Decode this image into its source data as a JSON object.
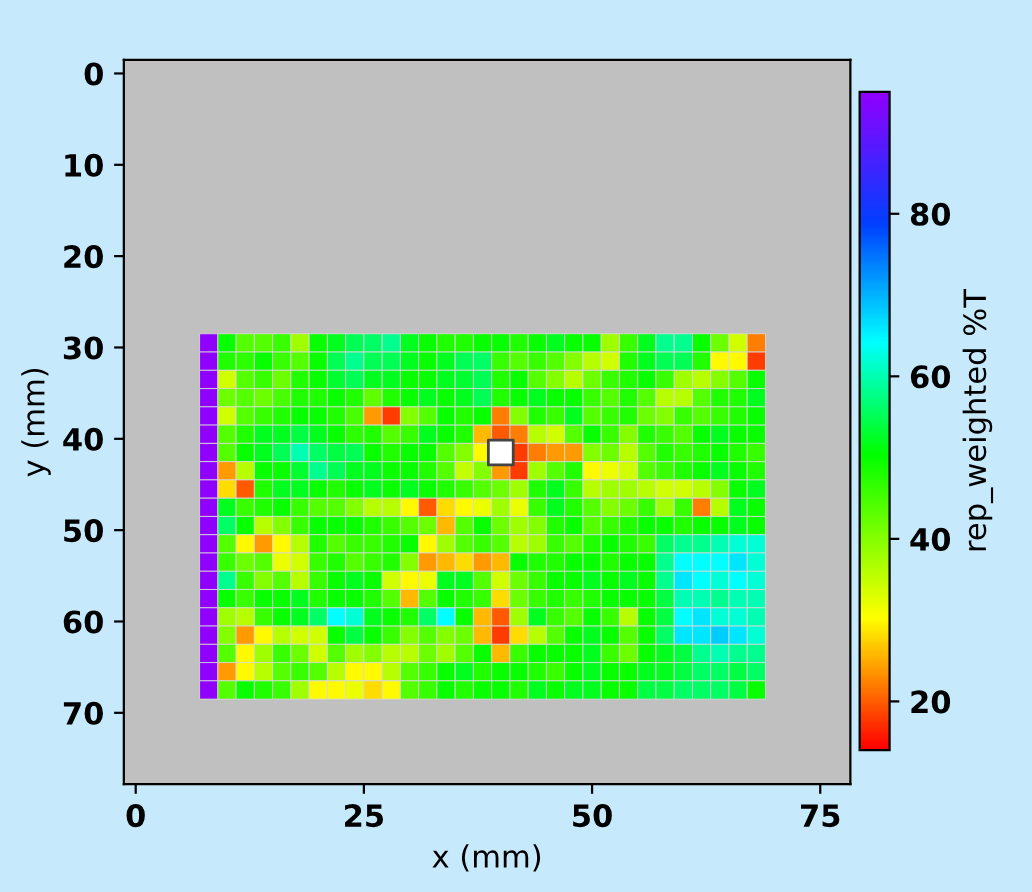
{
  "chart_data": {
    "type": "heatmap",
    "xlabel": "x (mm)",
    "ylabel": "y (mm)",
    "clabel": "rep_weighted %T",
    "x": [
      8,
      10,
      12,
      14,
      16,
      18,
      20,
      22,
      24,
      26,
      28,
      30,
      32,
      34,
      36,
      38,
      40,
      42,
      44,
      46,
      48,
      50,
      52,
      54,
      56,
      58,
      60,
      62,
      64,
      66,
      68
    ],
    "y": [
      29.5,
      31.5,
      33.5,
      35.5,
      37.5,
      39.5,
      41.5,
      43.5,
      45.5,
      47.5,
      49.5,
      51.5,
      53.5,
      55.5,
      57.5,
      59.5,
      61.5,
      63.5,
      65.5,
      67.5
    ],
    "cells": [
      [
        95,
        50,
        44,
        44,
        46,
        38,
        50,
        52,
        55,
        56,
        58,
        52,
        50,
        48,
        48,
        50,
        50,
        48,
        50,
        52,
        50,
        50,
        38,
        46,
        52,
        58,
        58,
        50,
        42,
        34,
        22
      ],
      [
        95,
        48,
        47,
        50,
        46,
        44,
        50,
        55,
        58,
        55,
        55,
        52,
        50,
        52,
        55,
        56,
        46,
        44,
        46,
        44,
        40,
        36,
        34,
        48,
        52,
        55,
        55,
        48,
        30,
        30,
        18
      ],
      [
        95,
        34,
        44,
        46,
        42,
        48,
        50,
        53,
        55,
        52,
        52,
        50,
        50,
        52,
        53,
        55,
        48,
        50,
        44,
        40,
        36,
        42,
        46,
        48,
        50,
        46,
        38,
        36,
        40,
        44,
        50
      ],
      [
        95,
        42,
        44,
        42,
        45,
        48,
        48,
        50,
        48,
        43,
        48,
        50,
        52,
        50,
        52,
        55,
        48,
        50,
        52,
        50,
        50,
        46,
        44,
        48,
        44,
        36,
        36,
        44,
        48,
        48,
        52
      ],
      [
        95,
        34,
        44,
        46,
        48,
        50,
        50,
        48,
        45,
        24,
        18,
        40,
        44,
        50,
        48,
        50,
        22,
        40,
        48,
        46,
        52,
        44,
        46,
        48,
        42,
        40,
        46,
        44,
        46,
        48,
        50
      ],
      [
        95,
        44,
        48,
        52,
        52,
        54,
        52,
        50,
        47,
        48,
        44,
        46,
        52,
        50,
        48,
        26,
        20,
        22,
        36,
        34,
        44,
        50,
        46,
        40,
        48,
        46,
        44,
        50,
        52,
        50,
        50
      ],
      [
        95,
        44,
        50,
        52,
        55,
        60,
        56,
        54,
        55,
        50,
        48,
        50,
        50,
        44,
        40,
        30,
        null,
        18,
        22,
        24,
        24,
        40,
        42,
        36,
        44,
        48,
        46,
        48,
        50,
        48,
        46
      ],
      [
        95,
        24,
        36,
        50,
        50,
        53,
        58,
        55,
        52,
        52,
        50,
        50,
        48,
        44,
        35,
        40,
        24,
        18,
        38,
        44,
        48,
        30,
        32,
        34,
        44,
        46,
        48,
        50,
        52,
        50,
        48
      ],
      [
        95,
        28,
        20,
        48,
        52,
        52,
        50,
        48,
        50,
        52,
        50,
        52,
        50,
        48,
        46,
        44,
        42,
        38,
        48,
        52,
        46,
        36,
        38,
        38,
        36,
        34,
        34,
        36,
        40,
        50,
        52
      ],
      [
        95,
        52,
        46,
        48,
        50,
        46,
        44,
        44,
        40,
        36,
        36,
        30,
        20,
        28,
        30,
        32,
        38,
        32,
        46,
        52,
        48,
        44,
        40,
        42,
        46,
        38,
        46,
        22,
        36,
        52,
        50
      ],
      [
        95,
        56,
        50,
        36,
        40,
        46,
        50,
        50,
        50,
        48,
        46,
        44,
        42,
        26,
        44,
        50,
        42,
        38,
        40,
        48,
        50,
        44,
        46,
        48,
        50,
        50,
        48,
        50,
        50,
        52,
        50
      ],
      [
        95,
        44,
        30,
        24,
        30,
        36,
        48,
        44,
        46,
        46,
        48,
        50,
        30,
        38,
        44,
        46,
        44,
        36,
        38,
        46,
        44,
        48,
        50,
        48,
        46,
        56,
        58,
        58,
        60,
        62,
        62
      ],
      [
        95,
        46,
        42,
        44,
        32,
        34,
        46,
        48,
        44,
        46,
        48,
        40,
        24,
        26,
        28,
        24,
        26,
        50,
        48,
        48,
        50,
        50,
        48,
        50,
        50,
        58,
        64,
        64,
        64,
        66,
        62
      ],
      [
        95,
        58,
        46,
        40,
        44,
        36,
        46,
        50,
        52,
        50,
        34,
        30,
        32,
        52,
        52,
        44,
        34,
        42,
        46,
        50,
        50,
        52,
        50,
        52,
        50,
        58,
        66,
        64,
        62,
        64,
        62
      ],
      [
        95,
        50,
        46,
        50,
        50,
        52,
        48,
        50,
        50,
        48,
        44,
        26,
        44,
        50,
        48,
        46,
        28,
        42,
        46,
        48,
        46,
        48,
        50,
        50,
        50,
        54,
        60,
        60,
        58,
        60,
        60
      ],
      [
        95,
        38,
        36,
        46,
        50,
        52,
        56,
        64,
        62,
        52,
        50,
        48,
        56,
        64,
        50,
        26,
        20,
        38,
        52,
        46,
        44,
        50,
        46,
        36,
        50,
        54,
        64,
        66,
        62,
        62,
        60
      ],
      [
        95,
        40,
        24,
        30,
        36,
        34,
        34,
        50,
        54,
        50,
        46,
        40,
        44,
        40,
        42,
        26,
        18,
        28,
        36,
        44,
        50,
        52,
        50,
        44,
        50,
        56,
        66,
        66,
        68,
        66,
        62
      ],
      [
        95,
        44,
        30,
        38,
        46,
        42,
        34,
        44,
        38,
        40,
        36,
        36,
        42,
        38,
        44,
        50,
        26,
        46,
        50,
        50,
        50,
        52,
        46,
        42,
        50,
        52,
        54,
        58,
        60,
        58,
        58
      ],
      [
        95,
        24,
        30,
        36,
        44,
        46,
        44,
        36,
        30,
        30,
        36,
        44,
        46,
        50,
        52,
        48,
        50,
        50,
        48,
        46,
        50,
        52,
        50,
        50,
        52,
        52,
        54,
        56,
        56,
        54,
        56
      ],
      [
        95,
        44,
        50,
        48,
        46,
        38,
        30,
        30,
        32,
        28,
        30,
        44,
        46,
        50,
        48,
        50,
        50,
        48,
        52,
        50,
        52,
        52,
        50,
        50,
        54,
        54,
        56,
        56,
        56,
        54,
        50
      ]
    ],
    "clim": [
      14,
      95
    ],
    "cticks": [
      20,
      40,
      60,
      80
    ],
    "xlim": [
      -1.3,
      78.3
    ],
    "ylim": [
      77.8,
      -1.5
    ],
    "xticks": [
      0,
      25,
      50,
      75
    ],
    "yticks": [
      0,
      10,
      20,
      30,
      40,
      50,
      60,
      70
    ],
    "grid": false,
    "series": [
      {
        "type": "scatter",
        "x": [
          40
        ],
        "values": [
          41.5
        ],
        "color": "#ffffff",
        "marker": "square"
      }
    ]
  }
}
